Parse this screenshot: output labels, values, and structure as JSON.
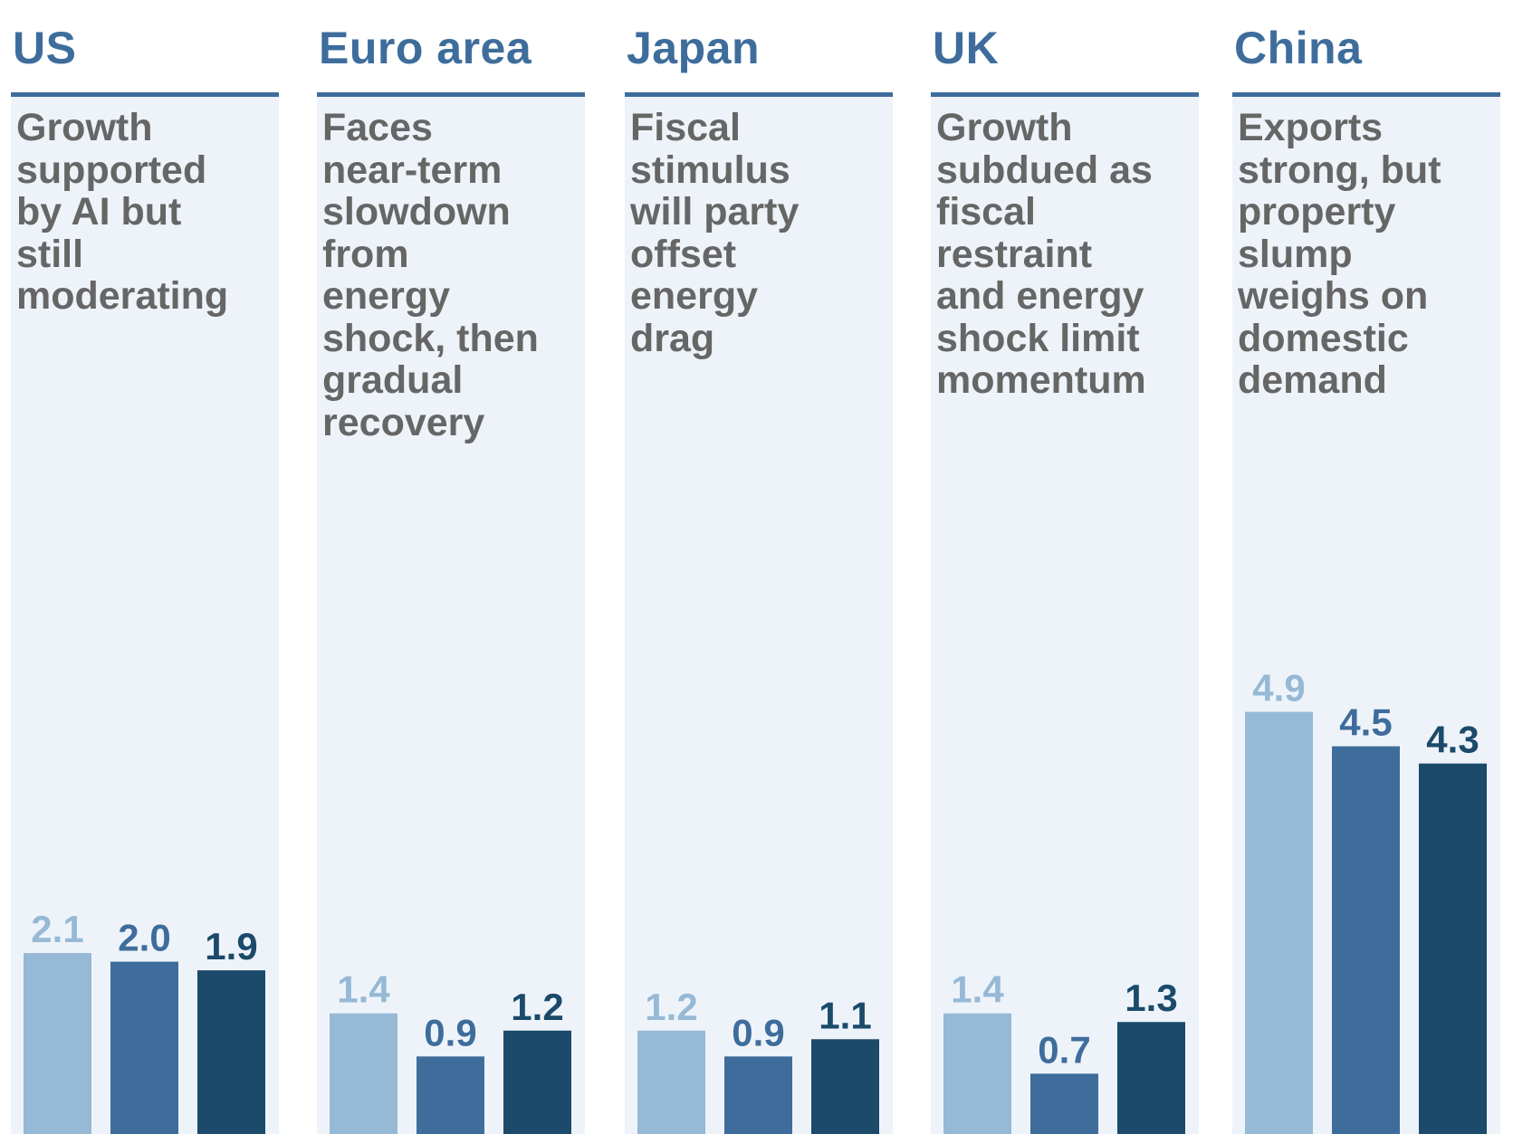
{
  "colors": {
    "series": [
      "#96b9d5",
      "#3e6d9c",
      "#1b4a6a"
    ],
    "title": "#3e6d9c",
    "panel_bg": "#eef3fa",
    "description": "#666666"
  },
  "chart_data": [
    {
      "type": "bar",
      "title": "US",
      "description": "Growth\nsupported\nby AI but\nstill\nmoderating",
      "values": [
        2.1,
        2.0,
        1.9
      ],
      "labels": [
        "2.1",
        "2.0",
        "1.9"
      ],
      "ylim": [
        0,
        6
      ]
    },
    {
      "type": "bar",
      "title": "Euro area",
      "description": "Faces\nnear-term\nslowdown\nfrom\nenergy\nshock, then\ngradual\nrecovery",
      "values": [
        1.4,
        0.9,
        1.2
      ],
      "labels": [
        "1.4",
        "0.9",
        "1.2"
      ],
      "ylim": [
        0,
        6
      ]
    },
    {
      "type": "bar",
      "title": "Japan",
      "description": "Fiscal\nstimulus\nwill party\noffset\nenergy\ndrag",
      "values": [
        1.2,
        0.9,
        1.1
      ],
      "labels": [
        "1.2",
        "0.9",
        "1.1"
      ],
      "ylim": [
        0,
        6
      ]
    },
    {
      "type": "bar",
      "title": "UK",
      "description": "Growth\nsubdued as\nfiscal\nrestraint\nand energy\nshock limit\nmomentum",
      "values": [
        1.4,
        0.7,
        1.3
      ],
      "labels": [
        "1.4",
        "0.7",
        "1.3"
      ],
      "ylim": [
        0,
        6
      ]
    },
    {
      "type": "bar",
      "title": "China",
      "description": "Exports\nstrong, but\nproperty\nslump\nweighs on\ndomestic\ndemand",
      "values": [
        4.9,
        4.5,
        4.3
      ],
      "labels": [
        "4.9",
        "4.5",
        "4.3"
      ],
      "ylim": [
        0,
        6
      ]
    }
  ]
}
